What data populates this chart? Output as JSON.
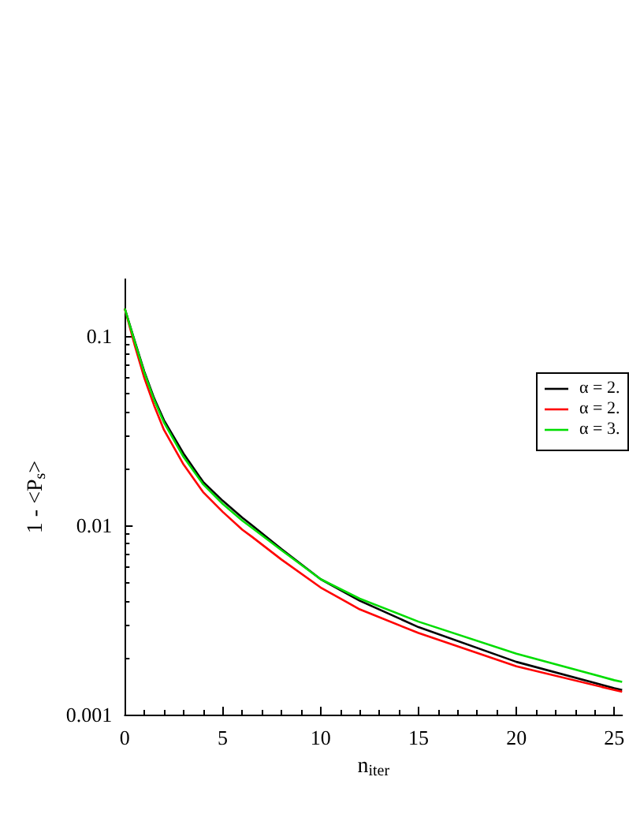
{
  "chart_data": {
    "type": "line",
    "xlabel": "n$_{iter}$",
    "ylabel": "1 - <P$_{s}$>",
    "log": "y",
    "xlim": [
      0,
      25.4
    ],
    "ylim": [
      0.001,
      0.2
    ],
    "xticks": [
      0,
      5,
      10,
      15,
      20,
      25
    ],
    "yticks": [
      0.001,
      0.01,
      0.1
    ],
    "legend": "right",
    "grid": false,
    "marker": "none",
    "line_style": "solid",
    "x": [
      0,
      0.5,
      1,
      1.5,
      2,
      3,
      4,
      5,
      6,
      6.5,
      8,
      10,
      12,
      15,
      20,
      25,
      25.4
    ],
    "series": [
      {
        "name": "α = 2.",
        "color": "#000000",
        "values": [
          0.14,
          0.095,
          0.065,
          0.047,
          0.036,
          0.024,
          0.017,
          0.0135,
          0.011,
          0.01,
          0.0075,
          0.0052,
          0.004,
          0.0029,
          0.0019,
          0.00138,
          0.00135
        ]
      },
      {
        "name": "α = 2.",
        "color": "#ff0000",
        "values": [
          0.14,
          0.09,
          0.06,
          0.043,
          0.032,
          0.021,
          0.015,
          0.0118,
          0.0095,
          0.0087,
          0.0066,
          0.0047,
          0.0036,
          0.0027,
          0.0018,
          0.00135,
          0.00132
        ]
      },
      {
        "name": "α = 3.",
        "color": "#00dd00",
        "values": [
          0.14,
          0.094,
          0.064,
          0.046,
          0.035,
          0.023,
          0.0165,
          0.013,
          0.0106,
          0.0097,
          0.0074,
          0.0052,
          0.0041,
          0.0031,
          0.0021,
          0.00152,
          0.00149
        ]
      }
    ]
  }
}
